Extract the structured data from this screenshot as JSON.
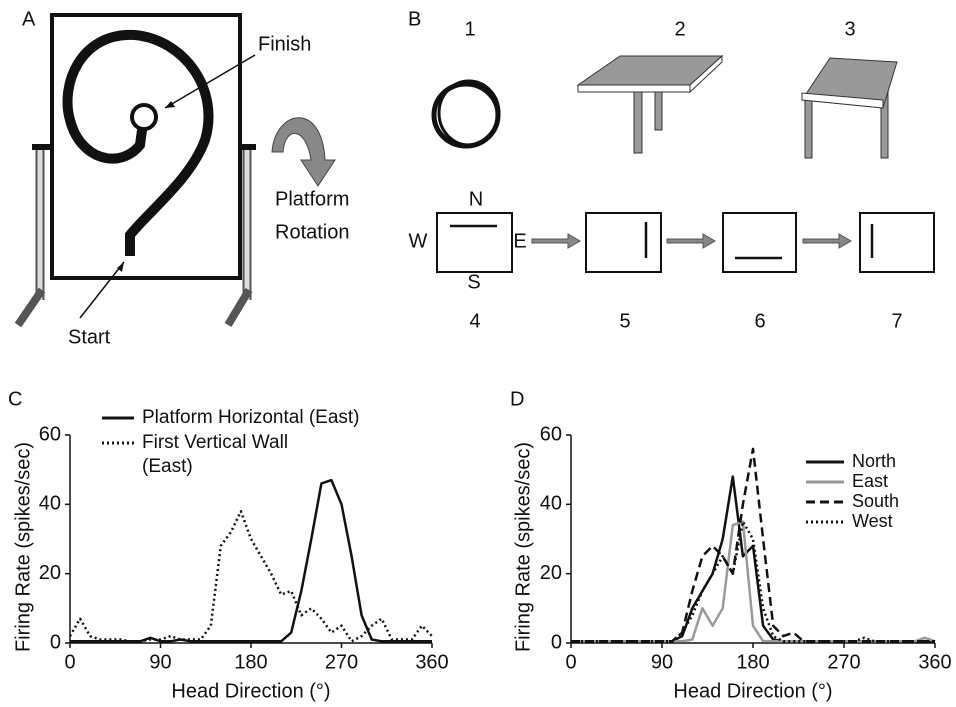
{
  "diagram": {
    "panel_a": {
      "label": "A",
      "finish": "Finish",
      "start": "Start",
      "rotation_1": "Platform",
      "rotation_2": "Rotation"
    },
    "panel_b": {
      "label": "B",
      "step_1": "1",
      "step_2": "2",
      "step_3": "3",
      "step_4": "4",
      "step_5": "5",
      "step_6": "6",
      "step_7": "7",
      "north": "N",
      "west": "W",
      "east": "E",
      "south": "S"
    }
  },
  "chart_data": [
    {
      "type": "line",
      "panel": "C",
      "xlabel": "Head Direction (°)",
      "ylabel": "Firing Rate (spikes/sec)",
      "x": [
        0,
        10,
        20,
        30,
        40,
        50,
        60,
        70,
        80,
        90,
        100,
        110,
        120,
        130,
        140,
        150,
        160,
        170,
        180,
        190,
        200,
        210,
        220,
        230,
        240,
        250,
        260,
        270,
        280,
        290,
        300,
        310,
        320,
        330,
        340,
        350,
        360
      ],
      "series": [
        {
          "name": "Platform Horizontal (East)",
          "color": "#111111",
          "dash": "solid",
          "values": [
            0.5,
            0.5,
            0.5,
            0.5,
            0.5,
            0.5,
            0.5,
            0.5,
            1.5,
            0.5,
            0.5,
            1,
            0.5,
            0.5,
            0.5,
            0.5,
            0.5,
            0.5,
            0.5,
            0.5,
            0.5,
            0.5,
            3,
            15,
            30,
            46,
            47,
            40,
            25,
            8,
            1,
            0.5,
            0.5,
            0.5,
            0.5,
            0.5,
            0.5
          ]
        },
        {
          "name": "First Vertical Wall (East)",
          "color": "#111111",
          "dash": "dotted",
          "values": [
            2,
            7,
            2,
            1,
            1,
            1,
            0.5,
            0.5,
            1,
            1,
            2,
            1,
            1,
            1,
            5,
            28,
            32,
            38,
            30,
            25,
            20,
            14,
            15,
            8,
            10,
            7,
            3,
            5,
            0.5,
            2,
            5,
            7,
            1,
            1,
            1,
            5,
            2
          ]
        }
      ],
      "xlim": [
        0,
        360
      ],
      "xticks": [
        0,
        90,
        180,
        270,
        360
      ],
      "ylim": [
        0,
        60
      ],
      "yticks": [
        0,
        20,
        40,
        60
      ],
      "legend": "top-left"
    },
    {
      "type": "line",
      "panel": "D",
      "xlabel": "Head Direction (°)",
      "ylabel": "Firing Rate (spikes/sec)",
      "x": [
        0,
        10,
        20,
        30,
        40,
        50,
        60,
        70,
        80,
        90,
        100,
        110,
        120,
        130,
        140,
        150,
        160,
        170,
        180,
        190,
        200,
        210,
        220,
        230,
        240,
        250,
        260,
        270,
        280,
        290,
        300,
        310,
        320,
        330,
        340,
        350,
        360
      ],
      "series": [
        {
          "name": "North",
          "color": "#111111",
          "dash": "solid",
          "values": [
            0.5,
            0.5,
            0.5,
            0.5,
            0.5,
            0.5,
            0.5,
            0.5,
            0.5,
            0.5,
            0.5,
            2,
            10,
            15,
            20,
            30,
            48,
            25,
            28,
            5,
            1,
            0.5,
            0.5,
            0.5,
            0.5,
            0.5,
            0.5,
            0.5,
            0.5,
            0.5,
            0.5,
            0.5,
            0.5,
            0.5,
            0.5,
            0.5,
            0.5
          ]
        },
        {
          "name": "East",
          "color": "#999999",
          "dash": "solid",
          "values": [
            0.5,
            0.5,
            0.5,
            0.5,
            0.5,
            0.5,
            0.5,
            0.5,
            0.5,
            0.5,
            0.5,
            0.5,
            1,
            10,
            5,
            10,
            34,
            35,
            5,
            0.5,
            0.5,
            0.5,
            0.5,
            0.5,
            0.5,
            0.5,
            0.5,
            0.5,
            0.5,
            0.5,
            0.5,
            0.5,
            0.5,
            0.5,
            0.5,
            1.5,
            0.5
          ]
        },
        {
          "name": "South",
          "color": "#111111",
          "dash": "dashed",
          "values": [
            0.5,
            0.5,
            0.5,
            0.5,
            0.5,
            0.5,
            0.5,
            0.5,
            0.5,
            0.5,
            0.5,
            3,
            15,
            25,
            28,
            25,
            20,
            40,
            56,
            30,
            5,
            2,
            3,
            0.5,
            0.5,
            0.5,
            0.5,
            0.5,
            0.5,
            0.5,
            0.5,
            0.5,
            0.5,
            0.5,
            0.5,
            0.5,
            0.5
          ]
        },
        {
          "name": "West",
          "color": "#111111",
          "dash": "dotted",
          "values": [
            0.5,
            0.5,
            0.5,
            0.5,
            0.5,
            0.5,
            0.5,
            0.5,
            0.5,
            0.5,
            0.5,
            3,
            8,
            15,
            20,
            25,
            20,
            35,
            30,
            10,
            2,
            0.5,
            0.5,
            0.5,
            0.5,
            0.5,
            0.5,
            0.5,
            0.5,
            1.5,
            0.5,
            0.5,
            0.5,
            0.5,
            0.5,
            0.5,
            0.5
          ]
        }
      ],
      "xlim": [
        0,
        360
      ],
      "xticks": [
        0,
        90,
        180,
        270,
        360
      ],
      "ylim": [
        0,
        60
      ],
      "yticks": [
        0,
        20,
        40,
        60
      ],
      "legend": "top-right"
    }
  ]
}
